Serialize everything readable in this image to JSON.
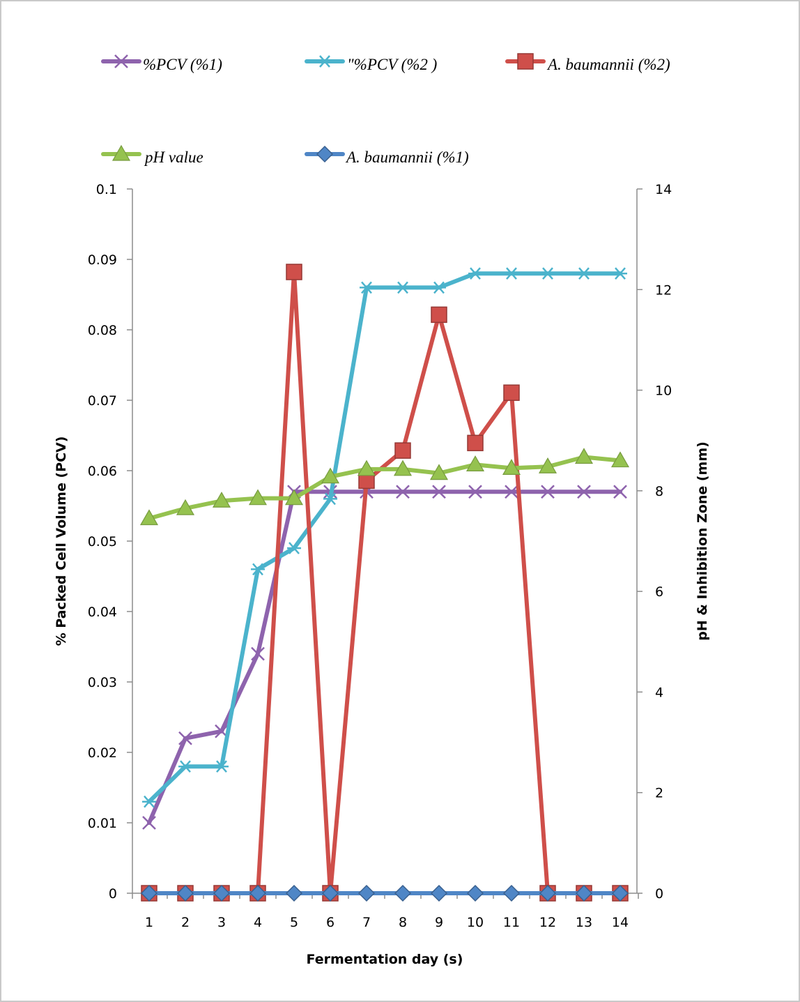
{
  "chart_data": {
    "type": "line",
    "x": [
      1,
      2,
      3,
      4,
      5,
      6,
      7,
      8,
      9,
      10,
      11,
      12,
      13,
      14
    ],
    "xlabel": "Fermentation day (s)",
    "ylabel_left": "% Packed Cell Volume (PCV)",
    "ylabel_right": "pH & Inhibition Zone (mm)",
    "ylim_left": [
      0,
      0.1
    ],
    "ylim_right": [
      0,
      14
    ],
    "yticks_left": [
      "0",
      "0.01",
      "0.02",
      "0.03",
      "0.04",
      "0.05",
      "0.06",
      "0.07",
      "0.08",
      "0.09",
      "0.1"
    ],
    "yticks_right": [
      "0",
      "2",
      "4",
      "6",
      "8",
      "10",
      "12",
      "14"
    ],
    "grid": false,
    "legend_position": "top",
    "series": [
      {
        "name": "%PCV (%1)",
        "axis": "left",
        "color": "#8e63ad",
        "marker": "x",
        "values": [
          0.01,
          0.022,
          0.023,
          0.034,
          0.057,
          0.057,
          0.057,
          0.057,
          0.057,
          0.057,
          0.057,
          0.057,
          0.057,
          0.057
        ]
      },
      {
        "name": "\"%PCV (%2 )",
        "axis": "left",
        "color": "#4bb3cc",
        "marker": "star",
        "values": [
          0.013,
          0.018,
          0.018,
          0.046,
          0.049,
          0.056,
          0.086,
          0.086,
          0.086,
          0.088,
          0.088,
          0.088,
          0.088,
          0.088
        ]
      },
      {
        "name": "A. baumannii (%2)",
        "axis": "right",
        "color": "#cf4f4a",
        "marker": "square",
        "values": [
          0,
          0,
          0,
          0,
          12.35,
          0,
          8.2,
          8.8,
          11.5,
          8.95,
          9.95,
          0,
          0,
          0
        ]
      },
      {
        "name": "pH value",
        "axis": "right",
        "color": "#95c24f",
        "marker": "triangle",
        "values": [
          7.45,
          7.65,
          7.8,
          7.85,
          7.85,
          8.28,
          8.43,
          8.43,
          8.35,
          8.52,
          8.45,
          8.48,
          8.67,
          8.6
        ]
      },
      {
        "name": "A. baumannii (%1)",
        "axis": "right",
        "color": "#4f86c6",
        "marker": "diamond",
        "values": [
          0,
          0,
          0,
          0,
          0,
          0,
          0,
          0,
          0,
          0,
          0,
          0,
          0,
          0
        ]
      }
    ]
  }
}
